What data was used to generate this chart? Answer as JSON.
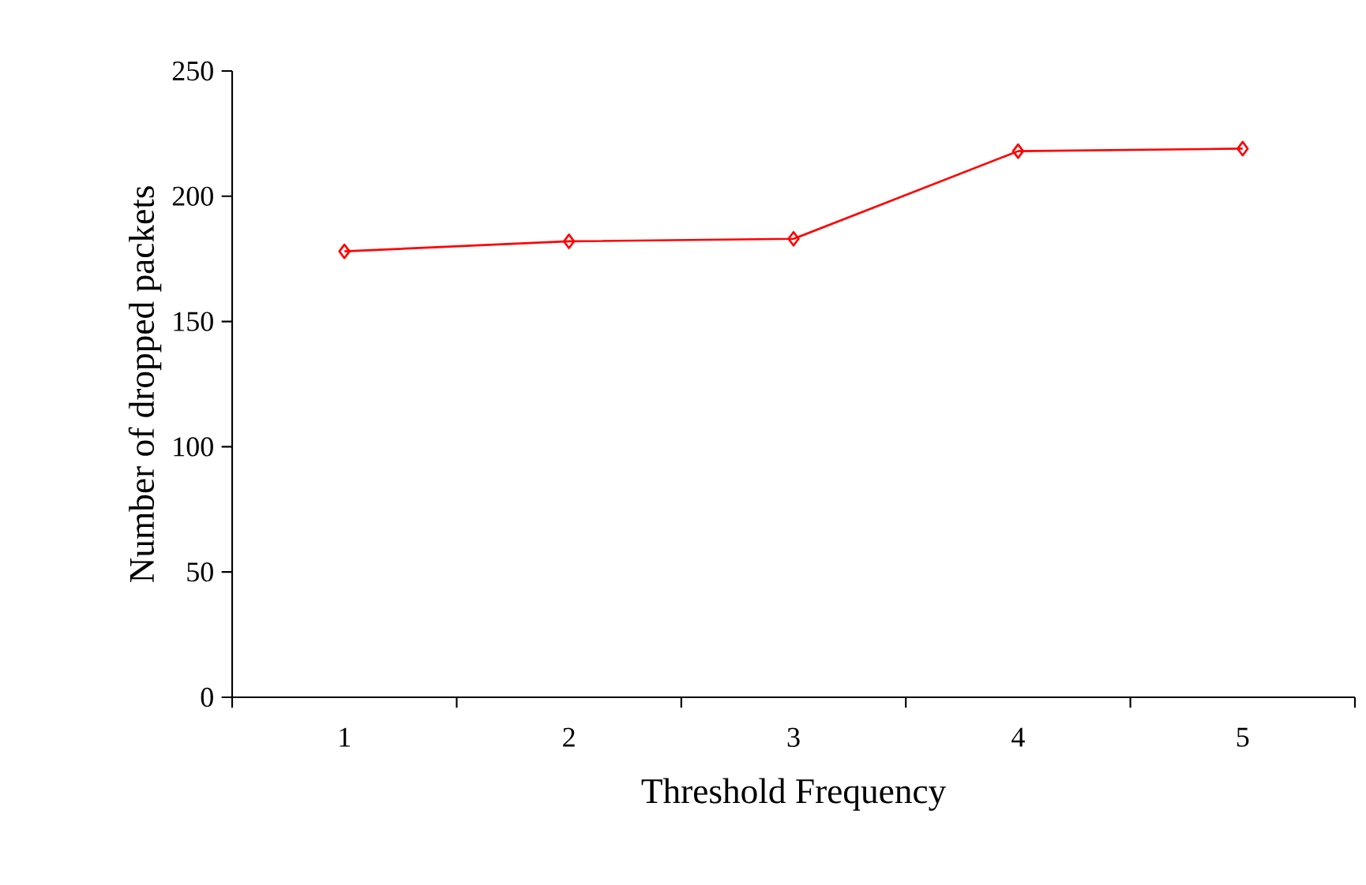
{
  "chart_data": {
    "type": "line",
    "xlabel": "Threshold Frequency",
    "ylabel": "Number of dropped packets",
    "categories": [
      "1",
      "2",
      "3",
      "4",
      "5"
    ],
    "series": [
      {
        "color": "#ff0000",
        "values": [
          178,
          182,
          183,
          218,
          219
        ]
      }
    ],
    "ylim": [
      0,
      250
    ],
    "yticks": [
      0,
      50,
      100,
      150,
      200,
      250
    ],
    "grid": false,
    "marker": "diamond",
    "line_style": "solid"
  }
}
